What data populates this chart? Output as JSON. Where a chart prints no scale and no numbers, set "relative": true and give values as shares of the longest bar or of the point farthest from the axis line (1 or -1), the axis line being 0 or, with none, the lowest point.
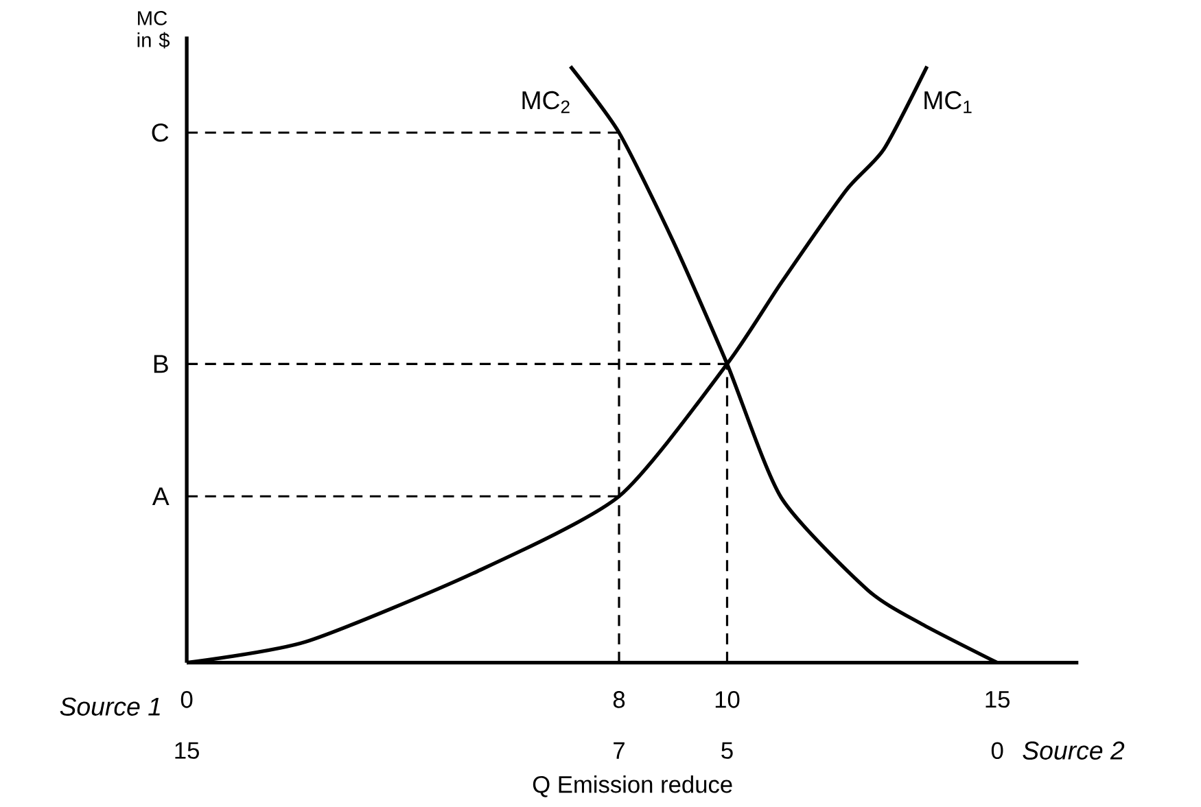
{
  "chart_data": {
    "type": "line",
    "relative": true,
    "xlabel": "Q Emission reduce",
    "ylabel": "MC in $",
    "xlim": [
      0,
      16.5
    ],
    "xticks": [
      0,
      8,
      10,
      15
    ],
    "x2lim": [
      15,
      -1.5
    ],
    "x2ticks": [
      15,
      7,
      5,
      0
    ],
    "series": [
      {
        "name": "MC$_{1}$",
        "color": "#000000",
        "x": [
          0,
          2.2,
          5.3,
          8,
          10,
          11.0,
          12.2,
          12.9,
          13.7
        ],
        "values": [
          0,
          0.035,
          0.15,
          0.279,
          0.501,
          0.637,
          0.792,
          0.861,
          1.0
        ]
      },
      {
        "name": "MC$_{2}$",
        "color": "#000000",
        "x": [
          7.1,
          8,
          9.0,
          10,
          11.0,
          12.6,
          13.6,
          15.0
        ],
        "values": [
          1.0,
          0.889,
          0.707,
          0.501,
          0.277,
          0.122,
          0.065,
          0
        ]
      }
    ],
    "ref_lines": [
      {
        "axis": "y",
        "value": 0.279,
        "label": "A",
        "line_style": "dashed"
      },
      {
        "axis": "y",
        "value": 0.501,
        "label": "B",
        "line_style": "dashed"
      },
      {
        "axis": "y",
        "value": 0.889,
        "label": "C",
        "line_style": "dashed"
      },
      {
        "axis": "x",
        "value": 8,
        "line_style": "dashed"
      },
      {
        "axis": "x",
        "value": 10,
        "line_style": "dashed"
      }
    ],
    "annotations": [
      "Source 1",
      "Source 2"
    ]
  }
}
